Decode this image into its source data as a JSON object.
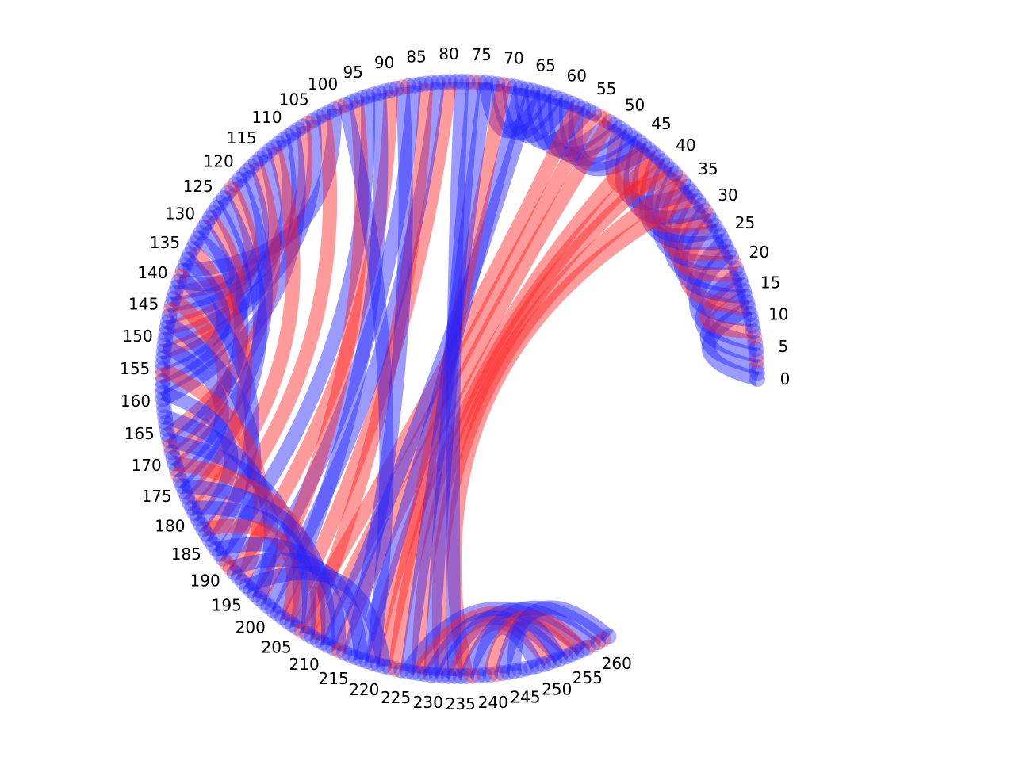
{
  "chart_data": {
    "type": "chord",
    "node_count": 262,
    "tick_step": 5,
    "tick_labels": [
      "0",
      "5",
      "10",
      "15",
      "20",
      "25",
      "30",
      "35",
      "40",
      "45",
      "50",
      "55",
      "60",
      "65",
      "70",
      "75",
      "80",
      "85",
      "90",
      "95",
      "100",
      "105",
      "110",
      "115",
      "120",
      "125",
      "130",
      "135",
      "140",
      "145",
      "150",
      "155",
      "160",
      "165",
      "170",
      "175",
      "180",
      "185",
      "190",
      "195",
      "200",
      "205",
      "210",
      "215",
      "220",
      "225",
      "230",
      "235",
      "240",
      "245",
      "250",
      "255",
      "260"
    ],
    "arc_start_deg": 0,
    "arc_end_deg": 300,
    "colors": {
      "blue": "#2222ff",
      "red": "#ff2222",
      "node_overlay": "#7a3cc8"
    },
    "links": [
      {
        "from": 0,
        "to": 12,
        "color": "blue"
      },
      {
        "from": 2,
        "to": 14,
        "color": "blue"
      },
      {
        "from": 4,
        "to": 18,
        "color": "blue"
      },
      {
        "from": 6,
        "to": 22,
        "color": "blue"
      },
      {
        "from": 8,
        "to": 16,
        "color": "red"
      },
      {
        "from": 10,
        "to": 24,
        "color": "blue"
      },
      {
        "from": 12,
        "to": 28,
        "color": "red"
      },
      {
        "from": 14,
        "to": 30,
        "color": "blue"
      },
      {
        "from": 16,
        "to": 34,
        "color": "blue"
      },
      {
        "from": 18,
        "to": 32,
        "color": "red"
      },
      {
        "from": 20,
        "to": 38,
        "color": "blue"
      },
      {
        "from": 22,
        "to": 36,
        "color": "red"
      },
      {
        "from": 24,
        "to": 42,
        "color": "blue"
      },
      {
        "from": 26,
        "to": 40,
        "color": "blue"
      },
      {
        "from": 28,
        "to": 44,
        "color": "red"
      },
      {
        "from": 30,
        "to": 46,
        "color": "blue"
      },
      {
        "from": 34,
        "to": 48,
        "color": "blue"
      },
      {
        "from": 38,
        "to": 50,
        "color": "red"
      },
      {
        "from": 44,
        "to": 60,
        "color": "blue"
      },
      {
        "from": 46,
        "to": 58,
        "color": "blue"
      },
      {
        "from": 48,
        "to": 62,
        "color": "blue"
      },
      {
        "from": 50,
        "to": 64,
        "color": "blue"
      },
      {
        "from": 52,
        "to": 66,
        "color": "blue"
      },
      {
        "from": 56,
        "to": 68,
        "color": "blue"
      },
      {
        "from": 60,
        "to": 70,
        "color": "blue"
      },
      {
        "from": 62,
        "to": 72,
        "color": "blue"
      },
      {
        "from": 64,
        "to": 74,
        "color": "blue"
      },
      {
        "from": 33,
        "to": 236,
        "color": "red"
      },
      {
        "from": 36,
        "to": 232,
        "color": "red"
      },
      {
        "from": 40,
        "to": 228,
        "color": "red"
      },
      {
        "from": 42,
        "to": 224,
        "color": "red"
      },
      {
        "from": 45,
        "to": 220,
        "color": "red"
      },
      {
        "from": 52,
        "to": 214,
        "color": "red"
      },
      {
        "from": 55,
        "to": 210,
        "color": "red"
      },
      {
        "from": 58,
        "to": 206,
        "color": "red"
      },
      {
        "from": 66,
        "to": 212,
        "color": "blue"
      },
      {
        "from": 68,
        "to": 218,
        "color": "blue"
      },
      {
        "from": 71,
        "to": 222,
        "color": "red"
      },
      {
        "from": 74,
        "to": 226,
        "color": "blue"
      },
      {
        "from": 76,
        "to": 230,
        "color": "blue"
      },
      {
        "from": 78,
        "to": 234,
        "color": "blue"
      },
      {
        "from": 80,
        "to": 204,
        "color": "red"
      },
      {
        "from": 82,
        "to": 200,
        "color": "blue"
      },
      {
        "from": 84,
        "to": 208,
        "color": "red"
      },
      {
        "from": 86,
        "to": 196,
        "color": "blue"
      },
      {
        "from": 88,
        "to": 216,
        "color": "blue"
      },
      {
        "from": 90,
        "to": 192,
        "color": "red"
      },
      {
        "from": 92,
        "to": 202,
        "color": "blue"
      },
      {
        "from": 94,
        "to": 188,
        "color": "blue"
      },
      {
        "from": 96,
        "to": 198,
        "color": "red"
      },
      {
        "from": 98,
        "to": 220,
        "color": "blue"
      },
      {
        "from": 100,
        "to": 138,
        "color": "blue"
      },
      {
        "from": 102,
        "to": 184,
        "color": "red"
      },
      {
        "from": 104,
        "to": 150,
        "color": "blue"
      },
      {
        "from": 106,
        "to": 142,
        "color": "red"
      },
      {
        "from": 108,
        "to": 160,
        "color": "blue"
      },
      {
        "from": 110,
        "to": 146,
        "color": "blue"
      },
      {
        "from": 112,
        "to": 180,
        "color": "red"
      },
      {
        "from": 114,
        "to": 154,
        "color": "blue"
      },
      {
        "from": 116,
        "to": 166,
        "color": "red"
      },
      {
        "from": 118,
        "to": 144,
        "color": "blue"
      },
      {
        "from": 120,
        "to": 172,
        "color": "blue"
      },
      {
        "from": 122,
        "to": 148,
        "color": "red"
      },
      {
        "from": 124,
        "to": 176,
        "color": "blue"
      },
      {
        "from": 126,
        "to": 158,
        "color": "blue"
      },
      {
        "from": 128,
        "to": 152,
        "color": "red"
      },
      {
        "from": 130,
        "to": 168,
        "color": "blue"
      },
      {
        "from": 132,
        "to": 140,
        "color": "blue"
      },
      {
        "from": 134,
        "to": 178,
        "color": "red"
      },
      {
        "from": 136,
        "to": 156,
        "color": "blue"
      },
      {
        "from": 139,
        "to": 186,
        "color": "blue"
      },
      {
        "from": 143,
        "to": 170,
        "color": "red"
      },
      {
        "from": 147,
        "to": 190,
        "color": "blue"
      },
      {
        "from": 151,
        "to": 174,
        "color": "blue"
      },
      {
        "from": 155,
        "to": 194,
        "color": "red"
      },
      {
        "from": 159,
        "to": 182,
        "color": "blue"
      },
      {
        "from": 163,
        "to": 198,
        "color": "blue"
      },
      {
        "from": 167,
        "to": 206,
        "color": "blue"
      },
      {
        "from": 171,
        "to": 210,
        "color": "red"
      },
      {
        "from": 175,
        "to": 212,
        "color": "blue"
      },
      {
        "from": 179,
        "to": 208,
        "color": "blue"
      },
      {
        "from": 183,
        "to": 204,
        "color": "red"
      },
      {
        "from": 187,
        "to": 214,
        "color": "blue"
      },
      {
        "from": 191,
        "to": 218,
        "color": "blue"
      },
      {
        "from": 195,
        "to": 222,
        "color": "blue"
      },
      {
        "from": 226,
        "to": 256,
        "color": "blue"
      },
      {
        "from": 228,
        "to": 254,
        "color": "red"
      },
      {
        "from": 230,
        "to": 252,
        "color": "blue"
      },
      {
        "from": 232,
        "to": 258,
        "color": "blue"
      },
      {
        "from": 234,
        "to": 250,
        "color": "red"
      },
      {
        "from": 236,
        "to": 260,
        "color": "blue"
      },
      {
        "from": 238,
        "to": 248,
        "color": "blue"
      },
      {
        "from": 240,
        "to": 256,
        "color": "red"
      },
      {
        "from": 242,
        "to": 261,
        "color": "blue"
      },
      {
        "from": 244,
        "to": 252,
        "color": "blue"
      }
    ]
  }
}
